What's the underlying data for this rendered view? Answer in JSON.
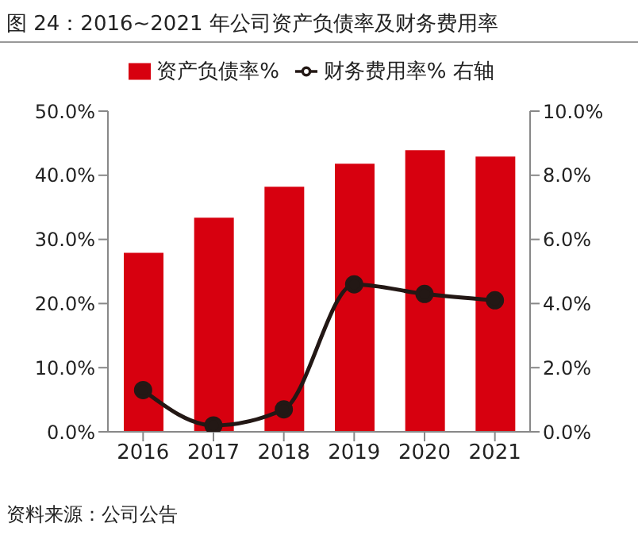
{
  "chart_data": {
    "type": "bar",
    "title": "图 24：2016~2021 年公司资产负债率及财务费用率",
    "categories": [
      "2016",
      "2017",
      "2018",
      "2019",
      "2020",
      "2021"
    ],
    "series": [
      {
        "name": "资产负债率%",
        "color": "#d7000f",
        "values": [
          27.9,
          33.4,
          38.2,
          41.8,
          43.9,
          42.9
        ]
      },
      {
        "name": "财务费用率% 右轴",
        "type": "line",
        "axis": "y2",
        "color": "#231815",
        "marker": "circle",
        "values": [
          1.3,
          0.2,
          0.7,
          4.6,
          4.3,
          4.1
        ]
      }
    ],
    "ylim": [
      0,
      50
    ],
    "yticks": [
      {
        "value": 0,
        "label": "0.0%"
      },
      {
        "value": 10,
        "label": "10.0%"
      },
      {
        "value": 20,
        "label": "20.0%"
      },
      {
        "value": 30,
        "label": "30.0%"
      },
      {
        "value": 40,
        "label": "40.0%"
      },
      {
        "value": 50,
        "label": "50.0%"
      }
    ],
    "y2lim": [
      0,
      10
    ],
    "y2ticks": [
      {
        "value": 0,
        "label": "0.0%"
      },
      {
        "value": 2,
        "label": "2.0%"
      },
      {
        "value": 4,
        "label": "4.0%"
      },
      {
        "value": 6,
        "label": "6.0%"
      },
      {
        "value": 8,
        "label": "8.0%"
      },
      {
        "value": 10,
        "label": "10.0%"
      }
    ],
    "grid": false,
    "legend": "top",
    "annotations": [
      "资料来源：公司公告"
    ]
  }
}
